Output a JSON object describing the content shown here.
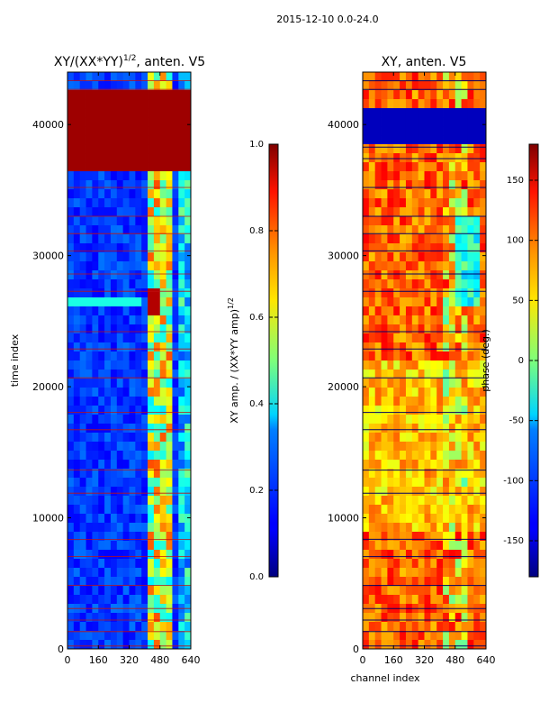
{
  "suptitle": "2015-12-10 0.0-24.0",
  "chart_data": [
    {
      "type": "heatmap",
      "title": "XY/(XX*YY)",
      "title_superscript": "1/2",
      "title_suffix": ", anten. V5",
      "xlabel": "",
      "ylabel": "time index",
      "xlim": [
        0,
        640
      ],
      "ylim": [
        0,
        44000
      ],
      "xticks": [
        "0",
        "160",
        "320",
        "480",
        "640"
      ],
      "yticks": [
        "0",
        "10000",
        "20000",
        "30000",
        "40000"
      ],
      "colormap": "jet",
      "colorbar": {
        "label": "XY amp. / (XX*YY amp)",
        "label_superscript": "1/2",
        "range": [
          0.0,
          1.0
        ],
        "ticks": [
          "0.0",
          "0.2",
          "0.4",
          "0.6",
          "0.8",
          "1.0"
        ]
      }
    },
    {
      "type": "heatmap",
      "title": "XY, anten. V5",
      "xlabel": "channel index",
      "ylabel": "",
      "xlim": [
        0,
        640
      ],
      "ylim": [
        0,
        44000
      ],
      "xticks": [
        "0",
        "160",
        "320",
        "480",
        "640"
      ],
      "yticks": [
        "0",
        "10000",
        "20000",
        "30000",
        "40000"
      ],
      "colormap": "jet",
      "colorbar": {
        "label": "phase (deg.)",
        "range": [
          -180,
          180
        ],
        "ticks": [
          "-150",
          "-100",
          "-50",
          "0",
          "50",
          "100",
          "150"
        ]
      }
    }
  ]
}
